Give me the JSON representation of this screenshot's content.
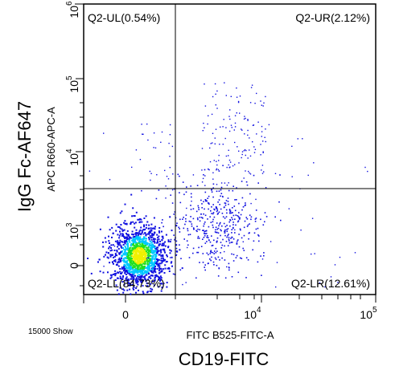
{
  "chart_data": {
    "type": "scatter",
    "subtype": "flow-cytometry-density-dot-plot",
    "outer_ylabel": "IgG Fc-AF647",
    "outer_xlabel": "CD19-FITC",
    "xlabel": "FITC B525-FITC-A",
    "ylabel": "APC R660-APC-A",
    "events_label": "15000 Show",
    "x_ticks": [
      {
        "base": "0",
        "exp": ""
      },
      {
        "base": "10",
        "exp": "4"
      },
      {
        "base": "10",
        "exp": "5"
      }
    ],
    "y_ticks": [
      {
        "base": "0",
        "exp": ""
      },
      {
        "base": "10",
        "exp": "3"
      },
      {
        "base": "10",
        "exp": "4"
      },
      {
        "base": "10",
        "exp": "5"
      },
      {
        "base": "10",
        "exp": "6"
      }
    ],
    "x_scale": "biexponential",
    "y_scale": "biexponential",
    "quadrants": [
      {
        "name": "Q2-UL",
        "percent": 0.54,
        "label": "Q2-UL(0.54%)",
        "position": "top-left"
      },
      {
        "name": "Q2-UR",
        "percent": 2.12,
        "label": "Q2-UR(2.12%)",
        "position": "top-right"
      },
      {
        "name": "Q2-LL",
        "percent": 84.73,
        "label": "Q2-LL(84.73%)",
        "position": "bottom-left"
      },
      {
        "name": "Q2-LR",
        "percent": 12.61,
        "label": "Q2-LR(12.61%)",
        "position": "bottom-right"
      }
    ],
    "populations": [
      {
        "name": "main negative cluster",
        "x_center": 0,
        "y_center": 0,
        "density": "high"
      },
      {
        "name": "CD19+ cluster",
        "x_center": 6000,
        "y_center": 700,
        "density": "medium"
      },
      {
        "name": "double-positive tail",
        "x_center": 7000,
        "y_center": 20000,
        "density": "low"
      }
    ],
    "colors": {
      "low": "#1010e0",
      "mid": "#00c8ff",
      "high": "#20e020",
      "peak": "#f0f000"
    }
  }
}
